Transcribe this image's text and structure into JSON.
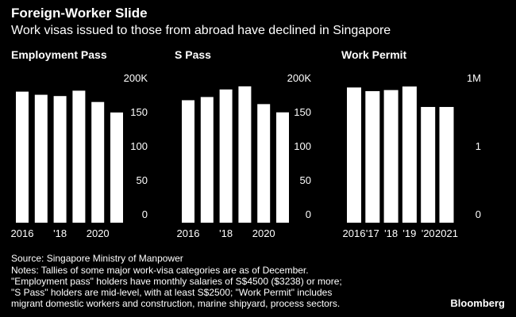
{
  "title": "Foreign-Worker Slide",
  "subtitle": "Work visas issued to those from abroad have declined in Singapore",
  "chart_data": [
    {
      "type": "bar",
      "title": "Employment Pass",
      "color": "#ffffff",
      "categories": [
        "2016",
        null,
        "'18",
        null,
        "2020",
        null
      ],
      "values": [
        192.3,
        187.7,
        185.8,
        193.7,
        177.1,
        161.7
      ],
      "ylim": [
        0,
        200
      ],
      "yticks": [
        0,
        50,
        100,
        150,
        {
          "value": 200,
          "label": "200K"
        }
      ]
    },
    {
      "type": "bar",
      "title": "S Pass",
      "color": "#ffffff",
      "categories": [
        "2016",
        null,
        "'18",
        null,
        "2020",
        null
      ],
      "values": [
        179.7,
        184.4,
        195.5,
        200.0,
        174.0,
        161.9
      ],
      "ylim": [
        0,
        200
      ],
      "yticks": [
        0,
        50,
        100,
        150,
        {
          "value": 200,
          "label": "200K"
        }
      ]
    },
    {
      "type": "bar",
      "title": "Work Permit",
      "color": "#ffffff",
      "categories": [
        "2016",
        "'17",
        "'18",
        "'19",
        "'20",
        "2021"
      ],
      "values": [
        0.992,
        0.965,
        0.973,
        0.999,
        0.849,
        0.849
      ],
      "ylim": [
        0,
        1
      ],
      "yticks": [
        0,
        {
          "value": 0.5,
          "label": "1"
        },
        {
          "value": 1,
          "label": "1M"
        }
      ]
    }
  ],
  "source": "Source: Singapore Ministry of Manpower",
  "notes": [
    "Notes: Tallies of some major work-visa categories are as of December.",
    "\"Employment pass\" holders have monthly salaries of S$4500 ($3238) or more;",
    "\"S Pass\" holders are mid-level, with at least S$2500; \"Work Permit\" includes",
    "migrant domestic workers and construction, marine shipyard, process sectors."
  ],
  "brand": "Bloomberg"
}
